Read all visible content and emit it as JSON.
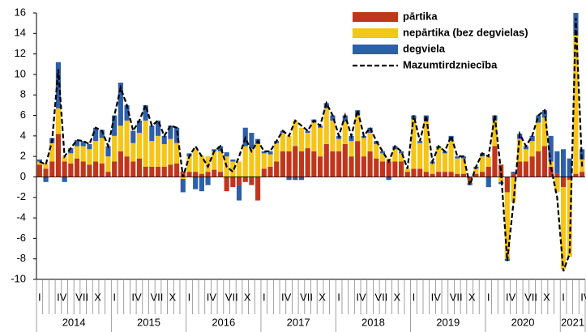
{
  "chart_data": {
    "type": "bar",
    "stacked": true,
    "grid": false,
    "legend": "top-right",
    "ylim": [
      -10,
      16
    ],
    "yticks": [
      -10,
      -8,
      -6,
      -4,
      -2,
      0,
      2,
      4,
      6,
      8,
      10,
      12,
      14,
      16
    ],
    "categories": [
      "I",
      null,
      null,
      "IV",
      null,
      null,
      "VII",
      null,
      null,
      "X",
      null,
      null,
      "I",
      null,
      null,
      "IV",
      null,
      null,
      "VII",
      null,
      null,
      "X",
      null,
      null,
      "I",
      null,
      null,
      "IV",
      null,
      null,
      "VII",
      null,
      null,
      "X",
      null,
      null,
      "I",
      null,
      null,
      "IV",
      null,
      null,
      "VII",
      null,
      null,
      "X",
      null,
      null,
      "I",
      null,
      null,
      "IV",
      null,
      null,
      "VII",
      null,
      null,
      "X",
      null,
      null,
      "I",
      null,
      null,
      "IV",
      null,
      null,
      "VII",
      null,
      null,
      "X",
      null,
      null,
      "I",
      null,
      null,
      "IV",
      null,
      null,
      "VII",
      null,
      null,
      "X",
      null,
      null,
      "I",
      null,
      null,
      "IV"
    ],
    "years": [
      "2014",
      "2015",
      "2016",
      "2017",
      "2018",
      "2019",
      "2020",
      "2021"
    ],
    "series": [
      {
        "name": "pārtika",
        "color": "#c0361c",
        "values": [
          1.2,
          0.8,
          1.5,
          4.2,
          1.5,
          1.3,
          1.8,
          1.5,
          1.2,
          1.5,
          1.3,
          0.5,
          1.5,
          2.5,
          2.0,
          1.5,
          1.8,
          1.0,
          1.0,
          1.0,
          1.0,
          1.2,
          1.3,
          0.5,
          0.5,
          0.5,
          0.3,
          0.5,
          0.7,
          0.5,
          -1.4,
          -1.0,
          -0.8,
          -0.5,
          -0.8,
          -2.3,
          0.8,
          1.0,
          1.5,
          2.5,
          2.5,
          3.0,
          2.5,
          2.8,
          2.5,
          2.0,
          3.2,
          2.5,
          2.5,
          3.2,
          2.0,
          3.5,
          2.0,
          2.5,
          1.8,
          1.5,
          1.5,
          1.5,
          1.5,
          0.5,
          0.8,
          0.8,
          0.5,
          0.3,
          0.5,
          0.5,
          0.5,
          0.3,
          0.3,
          -0.3,
          0.3,
          0.5,
          1.0,
          3.0,
          1.2,
          -1.5,
          0.3,
          1.5,
          1.5,
          2.0,
          2.5,
          3.0,
          1.0,
          0.3,
          -1.0,
          -0.3,
          0.3,
          0.5
        ]
      },
      {
        "name": "nepārtika (bez degvielas)",
        "color": "#f5c518",
        "values": [
          0.3,
          0.5,
          1.8,
          2.5,
          0.5,
          1.0,
          1.2,
          1.5,
          1.5,
          2.0,
          2.5,
          1.5,
          2.5,
          2.5,
          3.5,
          1.8,
          2.5,
          4.5,
          2.5,
          3.0,
          2.2,
          2.5,
          2.0,
          -0.2,
          1.5,
          2.2,
          1.8,
          1.5,
          1.8,
          2.0,
          2.0,
          1.5,
          1.5,
          3.0,
          2.8,
          3.2,
          1.5,
          1.2,
          1.8,
          1.8,
          1.5,
          2.5,
          2.3,
          1.5,
          2.8,
          2.8,
          3.5,
          3.0,
          1.2,
          2.2,
          1.5,
          2.5,
          1.8,
          1.8,
          1.4,
          0.8,
          0.3,
          1.2,
          0.8,
          0.3,
          4.8,
          2.5,
          5.0,
          1.0,
          2.3,
          1.8,
          3.0,
          1.5,
          1.5,
          -0.3,
          0.5,
          1.5,
          1.0,
          2.5,
          -0.5,
          -6.5,
          -2.5,
          2.2,
          1.2,
          1.5,
          2.8,
          2.8,
          0.5,
          -1.5,
          -8.0,
          -7.5,
          13.5,
          1.2
        ]
      },
      {
        "name": "degviela",
        "color": "#2e5fa8",
        "values": [
          0.2,
          -0.5,
          0.5,
          4.5,
          -0.5,
          0.5,
          0.6,
          0.5,
          0.5,
          1.3,
          0.8,
          1.0,
          2.0,
          4.2,
          1.5,
          1.2,
          1.2,
          1.5,
          1.5,
          1.5,
          0.8,
          1.3,
          1.5,
          -1.3,
          0.3,
          -1.2,
          -1.4,
          -0.8,
          0.2,
          0.5,
          0.4,
          0.2,
          -1.5,
          1.8,
          1.5,
          0.5,
          0.2,
          0.3,
          0.2,
          0.2,
          -0.3,
          -0.3,
          -0.3,
          0.2,
          0.3,
          0.2,
          0.5,
          0.5,
          0.3,
          0.6,
          0.5,
          0.5,
          0.2,
          0.5,
          0.3,
          0.2,
          -0.3,
          0.3,
          0.2,
          0.0,
          0.4,
          0.2,
          0.5,
          0.2,
          0.2,
          0.2,
          0.5,
          0.2,
          0.2,
          -0.2,
          0.2,
          0.3,
          -1.0,
          0.5,
          -0.2,
          -0.2,
          0.2,
          0.5,
          0.3,
          0.5,
          0.7,
          0.7,
          2.5,
          2.2,
          2.7,
          1.8,
          2.2,
          1.0
        ]
      },
      {
        "name": "Mazumtirdzniecība",
        "type": "line",
        "color": "#000000",
        "values": [
          1.5,
          1.2,
          3.5,
          10.5,
          2.0,
          2.8,
          3.6,
          3.5,
          3.2,
          4.8,
          4.5,
          3.0,
          6.0,
          8.7,
          7.0,
          4.5,
          5.5,
          7.0,
          5.0,
          5.5,
          4.0,
          5.0,
          4.8,
          0.0,
          2.0,
          3.0,
          2.0,
          1.0,
          2.5,
          3.0,
          1.0,
          0.5,
          2.0,
          3.8,
          2.5,
          3.5,
          2.5,
          2.5,
          3.5,
          4.5,
          4.0,
          5.5,
          5.0,
          4.5,
          5.5,
          5.0,
          7.2,
          6.0,
          4.0,
          6.0,
          4.0,
          6.5,
          4.0,
          4.8,
          3.5,
          2.5,
          1.5,
          3.0,
          2.5,
          0.8,
          6.0,
          3.5,
          6.0,
          1.5,
          3.0,
          2.5,
          4.0,
          2.0,
          2.0,
          -0.8,
          1.0,
          2.3,
          2.0,
          6.0,
          0.5,
          -8.2,
          -2.5,
          4.2,
          3.0,
          4.0,
          6.0,
          6.5,
          1.0,
          -2.0,
          -9.2,
          -7.5,
          15.5,
          1.0
        ]
      }
    ]
  }
}
